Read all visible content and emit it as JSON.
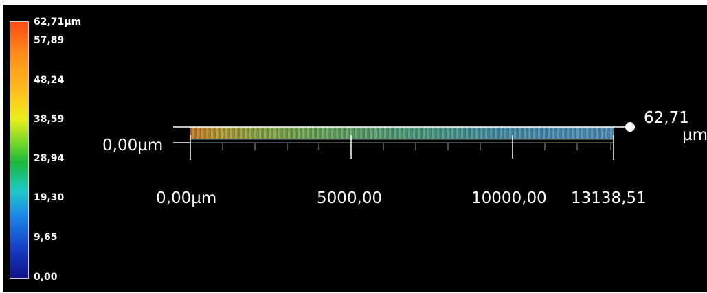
{
  "legend": {
    "labels": [
      "62,71µm",
      "57,89",
      "48,24",
      "38,59",
      "28,94",
      "19,30",
      "9,65",
      "0,00"
    ],
    "gradient_colors": [
      "#ff4a12",
      "#ff8a1a",
      "#ffc21c",
      "#eaee1a",
      "#6cd62a",
      "#18b93c",
      "#1ec9c9",
      "#1a86e8",
      "#1540c8",
      "#10108a"
    ]
  },
  "z_axis": {
    "min_label": "0,00µm",
    "max_label_value": "62,71",
    "max_label_unit": "µm"
  },
  "x_axis": {
    "tick_labels": [
      "0,00µm",
      "5000,00",
      "10000,00",
      "13138,51"
    ]
  },
  "colors": {
    "background": "#000000",
    "text": "#ffffff",
    "axis": "#ffffff"
  }
}
